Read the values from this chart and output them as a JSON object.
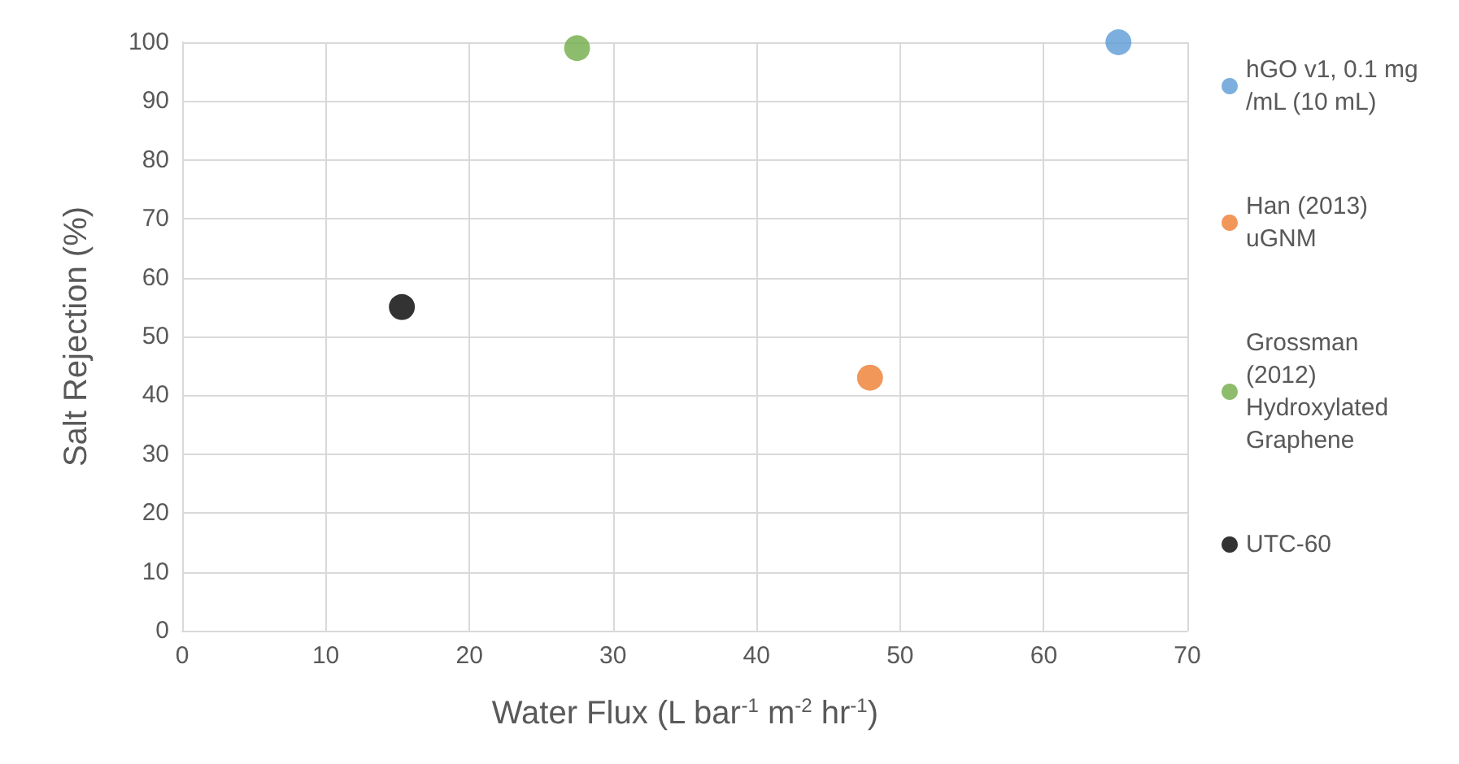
{
  "chart_data": {
    "type": "scatter",
    "xlabel": "Water Flux (L bar$^{-1}$ m$^{-2}$ hr$^{-1}$)",
    "ylabel": "Salt Rejection (%)",
    "xlim": [
      0,
      70
    ],
    "xticks": [
      0,
      10,
      20,
      30,
      40,
      50,
      60,
      70
    ],
    "ylim": [
      0,
      100
    ],
    "yticks": [
      0,
      10,
      20,
      30,
      40,
      50,
      60,
      70,
      80,
      90,
      100
    ],
    "grid": true,
    "legend": "right",
    "marker": "circle",
    "series": [
      {
        "name": "hGO v1, 0.1 mg/mL (10 mL)",
        "color": "#5b9bd5",
        "x": [
          65.2
        ],
        "values": [
          100
        ]
      },
      {
        "name": "Han (2013) uGNM",
        "color": "#ed7d31",
        "x": [
          47.9
        ],
        "values": [
          43
        ]
      },
      {
        "name": "Grossman (2012) Hydroxylated Graphene",
        "color": "#70ad47",
        "x": [
          27.5
        ],
        "values": [
          99
        ]
      },
      {
        "name": "UTC-60",
        "color": "#000000",
        "x": [
          15.3
        ],
        "values": [
          55
        ]
      }
    ]
  }
}
